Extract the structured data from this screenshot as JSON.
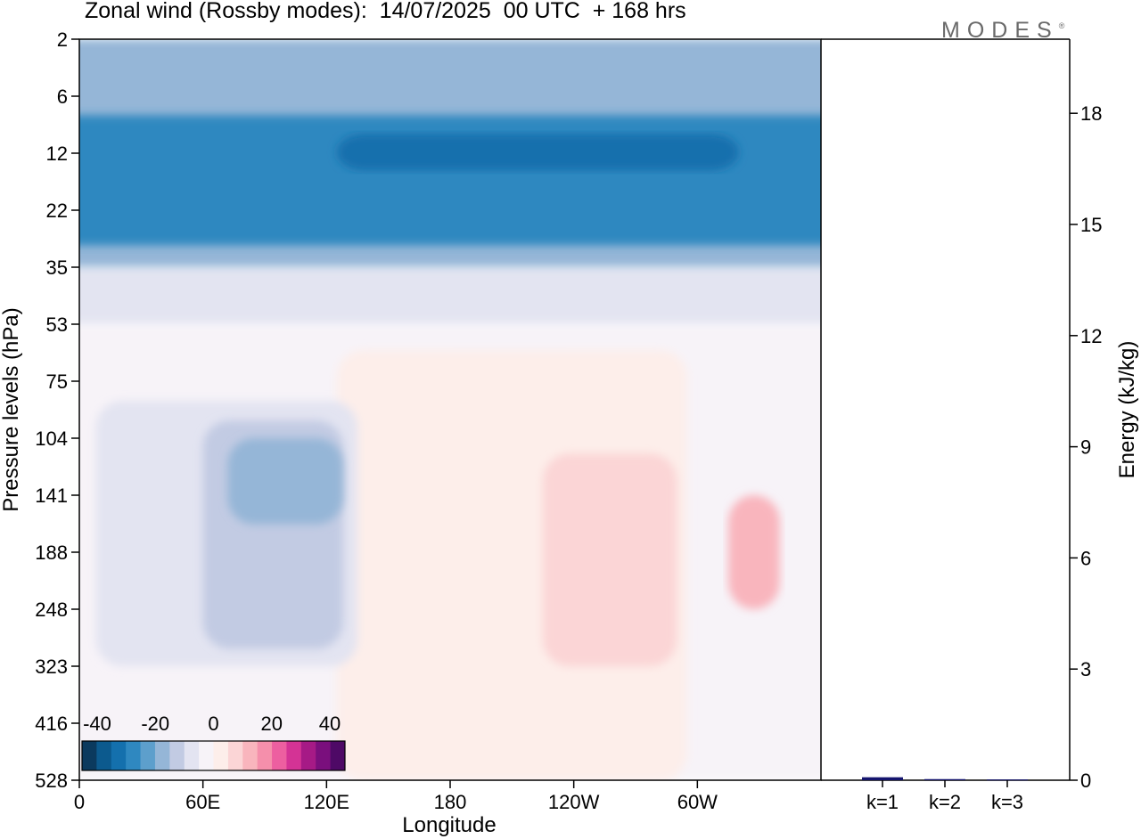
{
  "chart_data": [
    {
      "type": "heatmap",
      "title": "Zonal wind (Rossby modes):  14/07/2025  00 UTC  + 168 hrs",
      "xlabel": "Longitude",
      "ylabel": "Pressure levels (hPa)",
      "x_ticks": [
        "0",
        "60E",
        "120E",
        "180",
        "120W",
        "60W"
      ],
      "y_ticks": [
        "2",
        "6",
        "12",
        "22",
        "35",
        "53",
        "75",
        "104",
        "141",
        "188",
        "248",
        "323",
        "416",
        "528"
      ],
      "colorbar": {
        "labels": [
          "-40",
          "-20",
          "0",
          "20",
          "40"
        ],
        "colors": [
          "#0b3a5e",
          "#0c5a8e",
          "#1470ad",
          "#2f88c0",
          "#5d9fcc",
          "#95b6d7",
          "#c2cbe3",
          "#e3e4f1",
          "#f7f3f8",
          "#fdeeea",
          "#fbd5d6",
          "#f9b5bd",
          "#f58fab",
          "#ed5fa0",
          "#d43395",
          "#a61a86",
          "#7a0f7d",
          "#4e0966"
        ]
      },
      "regions": [
        {
          "level": "+0",
          "lon": [
            0,
            360
          ],
          "p": [
            53,
            528
          ]
        },
        {
          "level": "+5",
          "lon": [
            125,
            295
          ],
          "p": [
            63,
            528
          ]
        },
        {
          "level": "+10",
          "lon": [
            225,
            290
          ],
          "p": [
            114,
            323
          ]
        },
        {
          "level": "+15",
          "lon": [
            315,
            340
          ],
          "p": [
            141,
            248
          ]
        },
        {
          "level": "-5",
          "lon": [
            8,
            135
          ],
          "p": [
            85,
            323
          ]
        },
        {
          "level": "-10",
          "lon": [
            60,
            128
          ],
          "p": [
            95,
            300
          ]
        },
        {
          "level": "-15",
          "lon": [
            72,
            128
          ],
          "p": [
            104,
            165
          ]
        },
        {
          "level": "-5",
          "lon": [
            0,
            360
          ],
          "p": [
            35,
            53
          ]
        },
        {
          "level": "-15",
          "lon": [
            0,
            360
          ],
          "p": [
            2,
            35
          ]
        },
        {
          "level": "-25",
          "lon": [
            0,
            360
          ],
          "p": [
            8,
            30
          ]
        },
        {
          "level": "-30",
          "lon": [
            125,
            320
          ],
          "p": [
            10,
            15
          ]
        }
      ]
    },
    {
      "type": "bar",
      "ylabel": "Energy (kJ/kg)",
      "ylim": [
        0,
        20
      ],
      "y_ticks": [
        "0",
        "3",
        "6",
        "9",
        "12",
        "15",
        "18"
      ],
      "categories": [
        "k=1",
        "k=2",
        "k=3"
      ],
      "values": [
        0.08,
        0.03,
        0.02
      ],
      "bar_color": "#14146e"
    }
  ],
  "logo": {
    "text": "MODES",
    "mark": "®"
  }
}
